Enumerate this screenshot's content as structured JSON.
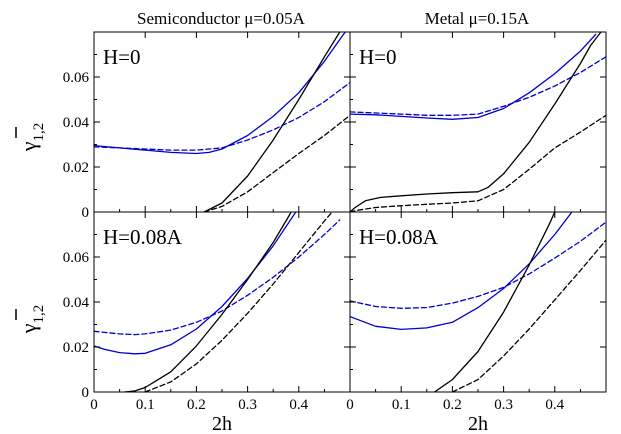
{
  "chart_data": {
    "type": "line",
    "column_titles": [
      "Semiconductor μ=0.05A",
      "Metal μ=0.15A"
    ],
    "ylabel_main": "γ",
    "ylabel_sub": "1,2",
    "xlabel": "2h",
    "xlim": [
      0,
      0.5
    ],
    "ylim": [
      0,
      0.08
    ],
    "x_ticks": [
      0,
      0.1,
      0.2,
      0.3,
      0.4
    ],
    "x_tick_labels": [
      "0",
      "0.1",
      "0.2",
      "0.3",
      "0.4"
    ],
    "y_ticks": [
      0,
      0.02,
      0.04,
      0.06
    ],
    "y_tick_labels": [
      "0",
      "0.02",
      "0.04",
      "0.06"
    ],
    "grid": false,
    "colors": {
      "blue": "#0000cc",
      "black": "#000000"
    },
    "panels": [
      {
        "label": "H=0",
        "series": [
          {
            "color": "blue",
            "dash": false,
            "points": [
              [
                0,
                0.0295
              ],
              [
                0.05,
                0.0285
              ],
              [
                0.1,
                0.0275
              ],
              [
                0.15,
                0.0265
              ],
              [
                0.2,
                0.026
              ],
              [
                0.225,
                0.0265
              ],
              [
                0.25,
                0.028
              ],
              [
                0.3,
                0.034
              ],
              [
                0.35,
                0.0425
              ],
              [
                0.4,
                0.053
              ],
              [
                0.45,
                0.067
              ],
              [
                0.5,
                0.083
              ]
            ]
          },
          {
            "color": "blue",
            "dash": true,
            "points": [
              [
                0,
                0.029
              ],
              [
                0.05,
                0.0285
              ],
              [
                0.1,
                0.028
              ],
              [
                0.15,
                0.0275
              ],
              [
                0.2,
                0.0275
              ],
              [
                0.25,
                0.0285
              ],
              [
                0.3,
                0.032
              ],
              [
                0.35,
                0.0365
              ],
              [
                0.4,
                0.042
              ],
              [
                0.45,
                0.049
              ],
              [
                0.5,
                0.0575
              ]
            ]
          },
          {
            "color": "black",
            "dash": false,
            "points": [
              [
                0.215,
                0
              ],
              [
                0.25,
                0.004
              ],
              [
                0.3,
                0.016
              ],
              [
                0.35,
                0.032
              ],
              [
                0.4,
                0.05
              ],
              [
                0.45,
                0.069
              ],
              [
                0.48,
                0.08
              ]
            ]
          },
          {
            "color": "black",
            "dash": true,
            "points": [
              [
                0.215,
                0
              ],
              [
                0.25,
                0.0025
              ],
              [
                0.3,
                0.009
              ],
              [
                0.35,
                0.0175
              ],
              [
                0.4,
                0.026
              ],
              [
                0.45,
                0.034
              ],
              [
                0.5,
                0.043
              ]
            ]
          }
        ]
      },
      {
        "label": "H=0",
        "series": [
          {
            "color": "blue",
            "dash": false,
            "points": [
              [
                0,
                0.0435
              ],
              [
                0.05,
                0.0432
              ],
              [
                0.1,
                0.0425
              ],
              [
                0.15,
                0.0418
              ],
              [
                0.2,
                0.0412
              ],
              [
                0.25,
                0.042
              ],
              [
                0.3,
                0.046
              ],
              [
                0.35,
                0.053
              ],
              [
                0.4,
                0.0615
              ],
              [
                0.45,
                0.0715
              ],
              [
                0.48,
                0.079
              ]
            ]
          },
          {
            "color": "blue",
            "dash": true,
            "points": [
              [
                0,
                0.0445
              ],
              [
                0.05,
                0.044
              ],
              [
                0.1,
                0.0435
              ],
              [
                0.15,
                0.043
              ],
              [
                0.2,
                0.043
              ],
              [
                0.25,
                0.0435
              ],
              [
                0.3,
                0.047
              ],
              [
                0.35,
                0.051
              ],
              [
                0.4,
                0.056
              ],
              [
                0.45,
                0.062
              ],
              [
                0.5,
                0.069
              ]
            ]
          },
          {
            "color": "black",
            "dash": false,
            "points": [
              [
                0,
                0
              ],
              [
                0.01,
                0.002
              ],
              [
                0.03,
                0.005
              ],
              [
                0.06,
                0.0065
              ],
              [
                0.1,
                0.0072
              ],
              [
                0.15,
                0.008
              ],
              [
                0.2,
                0.0086
              ],
              [
                0.25,
                0.009
              ],
              [
                0.27,
                0.011
              ],
              [
                0.3,
                0.017
              ],
              [
                0.35,
                0.031
              ],
              [
                0.4,
                0.048
              ],
              [
                0.45,
                0.066
              ],
              [
                0.47,
                0.074
              ],
              [
                0.49,
                0.08
              ]
            ]
          },
          {
            "color": "black",
            "dash": true,
            "points": [
              [
                0,
                0
              ],
              [
                0.02,
                0.001
              ],
              [
                0.05,
                0.002
              ],
              [
                0.1,
                0.0028
              ],
              [
                0.15,
                0.0034
              ],
              [
                0.2,
                0.004
              ],
              [
                0.25,
                0.005
              ],
              [
                0.3,
                0.01
              ],
              [
                0.35,
                0.019
              ],
              [
                0.4,
                0.0285
              ],
              [
                0.45,
                0.0355
              ],
              [
                0.5,
                0.043
              ]
            ]
          }
        ]
      },
      {
        "label": "H=0.08A",
        "series": [
          {
            "color": "blue",
            "dash": false,
            "points": [
              [
                0,
                0.0205
              ],
              [
                0.02,
                0.019
              ],
              [
                0.05,
                0.0175
              ],
              [
                0.08,
                0.017
              ],
              [
                0.1,
                0.0172
              ],
              [
                0.15,
                0.021
              ],
              [
                0.2,
                0.028
              ],
              [
                0.25,
                0.038
              ],
              [
                0.3,
                0.0505
              ],
              [
                0.35,
                0.065
              ],
              [
                0.4,
                0.082
              ]
            ]
          },
          {
            "color": "blue",
            "dash": true,
            "points": [
              [
                0,
                0.027
              ],
              [
                0.05,
                0.0258
              ],
              [
                0.08,
                0.0255
              ],
              [
                0.1,
                0.0258
              ],
              [
                0.15,
                0.0275
              ],
              [
                0.2,
                0.031
              ],
              [
                0.25,
                0.036
              ],
              [
                0.3,
                0.043
              ],
              [
                0.35,
                0.051
              ],
              [
                0.4,
                0.06
              ],
              [
                0.45,
                0.07
              ],
              [
                0.48,
                0.0765
              ]
            ]
          },
          {
            "color": "black",
            "dash": false,
            "points": [
              [
                0.06,
                0
              ],
              [
                0.08,
                0.0005
              ],
              [
                0.1,
                0.002
              ],
              [
                0.15,
                0.009
              ],
              [
                0.2,
                0.0205
              ],
              [
                0.25,
                0.0345
              ],
              [
                0.3,
                0.05
              ],
              [
                0.35,
                0.0665
              ],
              [
                0.38,
                0.078
              ],
              [
                0.385,
                0.08
              ]
            ]
          },
          {
            "color": "black",
            "dash": true,
            "points": [
              [
                0.1,
                0
              ],
              [
                0.15,
                0.0045
              ],
              [
                0.2,
                0.0125
              ],
              [
                0.25,
                0.023
              ],
              [
                0.3,
                0.035
              ],
              [
                0.35,
                0.048
              ],
              [
                0.4,
                0.062
              ],
              [
                0.45,
                0.076
              ],
              [
                0.465,
                0.08
              ]
            ]
          }
        ]
      },
      {
        "label": "H=0.08A",
        "series": [
          {
            "color": "blue",
            "dash": false,
            "points": [
              [
                0,
                0.0335
              ],
              [
                0.05,
                0.0292
              ],
              [
                0.1,
                0.0278
              ],
              [
                0.15,
                0.0285
              ],
              [
                0.2,
                0.031
              ],
              [
                0.25,
                0.0375
              ],
              [
                0.3,
                0.046
              ],
              [
                0.35,
                0.057
              ],
              [
                0.4,
                0.07
              ],
              [
                0.44,
                0.082
              ]
            ]
          },
          {
            "color": "blue",
            "dash": true,
            "points": [
              [
                0,
                0.0405
              ],
              [
                0.05,
                0.038
              ],
              [
                0.1,
                0.0372
              ],
              [
                0.15,
                0.0375
              ],
              [
                0.2,
                0.0395
              ],
              [
                0.25,
                0.0425
              ],
              [
                0.3,
                0.0465
              ],
              [
                0.35,
                0.0525
              ],
              [
                0.4,
                0.0595
              ],
              [
                0.45,
                0.067
              ],
              [
                0.5,
                0.0755
              ]
            ]
          },
          {
            "color": "black",
            "dash": false,
            "points": [
              [
                0.165,
                0
              ],
              [
                0.2,
                0.0055
              ],
              [
                0.25,
                0.018
              ],
              [
                0.3,
                0.0355
              ],
              [
                0.35,
                0.0565
              ],
              [
                0.39,
                0.075
              ],
              [
                0.4,
                0.08
              ]
            ]
          },
          {
            "color": "black",
            "dash": true,
            "points": [
              [
                0.2,
                0
              ],
              [
                0.25,
                0.0055
              ],
              [
                0.3,
                0.016
              ],
              [
                0.35,
                0.028
              ],
              [
                0.4,
                0.041
              ],
              [
                0.45,
                0.054
              ],
              [
                0.5,
                0.0675
              ]
            ]
          }
        ]
      }
    ]
  }
}
